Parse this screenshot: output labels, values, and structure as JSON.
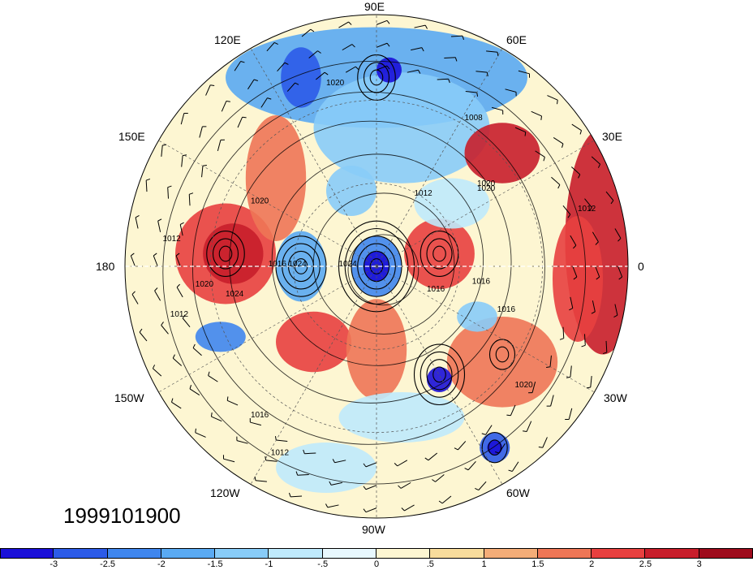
{
  "map": {
    "date_label": "1999101900",
    "longitude_labels": [
      {
        "text": "90E",
        "id": "lon-90e"
      },
      {
        "text": "60E",
        "id": "lon-60e"
      },
      {
        "text": "30E",
        "id": "lon-30e"
      },
      {
        "text": "0",
        "id": "lon-0"
      },
      {
        "text": "30W",
        "id": "lon-30w"
      },
      {
        "text": "60W",
        "id": "lon-60w"
      },
      {
        "text": "90W",
        "id": "lon-90w"
      },
      {
        "text": "120W",
        "id": "lon-120w"
      },
      {
        "text": "150W",
        "id": "lon-150w"
      },
      {
        "text": "180",
        "id": "lon-180"
      },
      {
        "text": "150E",
        "id": "lon-150e"
      },
      {
        "text": "120E",
        "id": "lon-120e"
      }
    ],
    "contour_labels": [
      "1020",
      "1008",
      "1012",
      "1020",
      "1016",
      "1024",
      "1016",
      "1020",
      "1020",
      "1012",
      "1016",
      "1024",
      "1012",
      "1016",
      "1020",
      "1012",
      "1020",
      "1024",
      "1016",
      "1012"
    ],
    "projection": "north-polar-stereographic",
    "fields": [
      "shaded anomaly",
      "sea-level pressure contours",
      "wind barbs"
    ]
  },
  "colorbar": {
    "tick_labels": [
      "-3",
      "-2.5",
      "-2",
      "-1.5",
      "-1",
      "-.5",
      "0",
      ".5",
      "1",
      "1.5",
      "2",
      "2.5",
      "3"
    ],
    "colors": [
      "#1a10d8",
      "#2c5be8",
      "#3f86ee",
      "#5aaaf2",
      "#88ccf8",
      "#bfeafc",
      "#e8f8fe",
      "#fdf6d2",
      "#f8dc9c",
      "#f4ad78",
      "#ee7656",
      "#e8403f",
      "#c81e2b",
      "#9e0b1c"
    ]
  }
}
